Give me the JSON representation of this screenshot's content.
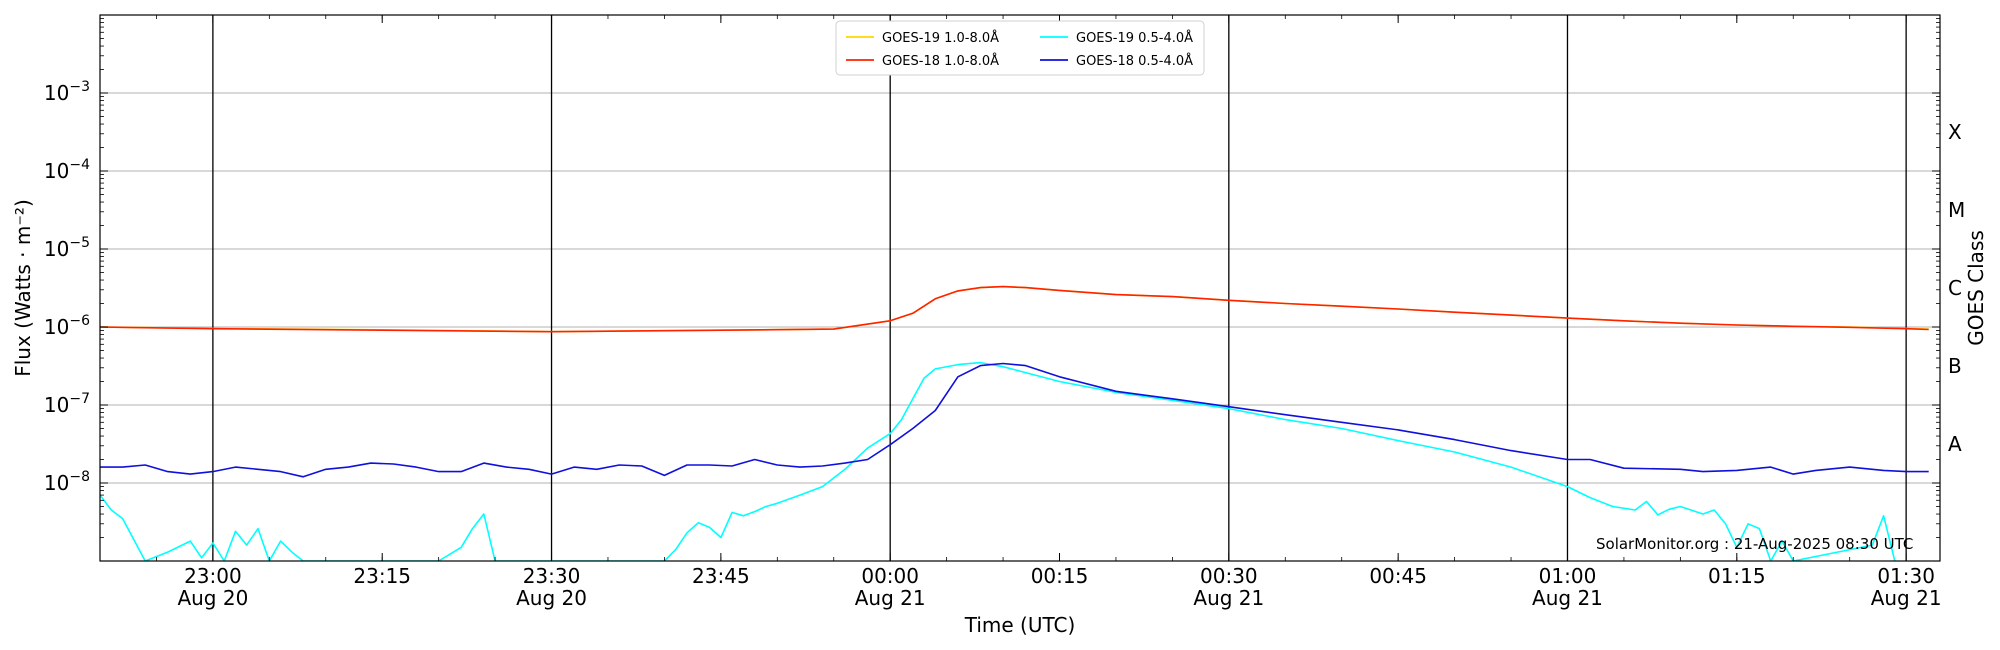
{
  "chart_data": {
    "type": "line",
    "title": "",
    "xlabel": "Time (UTC)",
    "ylabel": "Flux (Watts · m⁻²)",
    "ylabel_right": "GOES Class",
    "yscale": "log",
    "ylim": [
      1e-09,
      0.01
    ],
    "xlim": [
      "2025-08-20 22:50",
      "2025-08-21 01:33"
    ],
    "grid": "horizontal",
    "legend_position": "top-center",
    "credit": "SolarMonitor.org : 21-Aug-2025 08:30 UTC",
    "x_ticks": [
      {
        "t": "2025-08-20 23:00",
        "line1": "23:00",
        "line2": "Aug 20"
      },
      {
        "t": "2025-08-20 23:15",
        "line1": "23:15",
        "line2": ""
      },
      {
        "t": "2025-08-20 23:30",
        "line1": "23:30",
        "line2": "Aug 20"
      },
      {
        "t": "2025-08-20 23:45",
        "line1": "23:45",
        "line2": ""
      },
      {
        "t": "2025-08-21 00:00",
        "line1": "00:00",
        "line2": "Aug 21"
      },
      {
        "t": "2025-08-21 00:15",
        "line1": "00:15",
        "line2": ""
      },
      {
        "t": "2025-08-21 00:30",
        "line1": "00:30",
        "line2": "Aug 21"
      },
      {
        "t": "2025-08-21 00:45",
        "line1": "00:45",
        "line2": ""
      },
      {
        "t": "2025-08-21 01:00",
        "line1": "01:00",
        "line2": "Aug 21"
      },
      {
        "t": "2025-08-21 01:15",
        "line1": "01:15",
        "line2": ""
      },
      {
        "t": "2025-08-21 01:30",
        "line1": "01:30",
        "line2": "Aug 21"
      }
    ],
    "vertical_markers": [
      "2025-08-20 23:00",
      "2025-08-20 23:30",
      "2025-08-21 00:00",
      "2025-08-21 00:30",
      "2025-08-21 01:00",
      "2025-08-21 01:30"
    ],
    "y_ticks": [
      {
        "exp": -3,
        "label": "10",
        "sup": "−3"
      },
      {
        "exp": -4,
        "label": "10",
        "sup": "−4"
      },
      {
        "exp": -5,
        "label": "10",
        "sup": "−5"
      },
      {
        "exp": -6,
        "label": "10",
        "sup": "−6"
      },
      {
        "exp": -7,
        "label": "10",
        "sup": "−7"
      },
      {
        "exp": -8,
        "label": "10",
        "sup": "−8"
      }
    ],
    "goes_classes": [
      {
        "label": "X",
        "flux": 0.0001
      },
      {
        "label": "M",
        "flux": 1e-05
      },
      {
        "label": "C",
        "flux": 1e-06
      },
      {
        "label": "B",
        "flux": 1e-07
      },
      {
        "label": "A",
        "flux": 1e-08
      }
    ],
    "series": [
      {
        "name": "GOES-19 1.0-8.0Å",
        "color": "#ffd700",
        "x": [
          "2025-08-20 22:50",
          "2025-08-20 23:00",
          "2025-08-20 23:15",
          "2025-08-20 23:30",
          "2025-08-20 23:45",
          "2025-08-20 23:55",
          "2025-08-21 00:00",
          "2025-08-21 00:02",
          "2025-08-21 00:04",
          "2025-08-21 00:06",
          "2025-08-21 00:08",
          "2025-08-21 00:10",
          "2025-08-21 00:12",
          "2025-08-21 00:15",
          "2025-08-21 00:20",
          "2025-08-21 00:25",
          "2025-08-21 00:30",
          "2025-08-21 00:35",
          "2025-08-21 00:40",
          "2025-08-21 00:45",
          "2025-08-21 00:50",
          "2025-08-21 00:55",
          "2025-08-21 01:00",
          "2025-08-21 01:05",
          "2025-08-21 01:10",
          "2025-08-21 01:15",
          "2025-08-21 01:20",
          "2025-08-21 01:25",
          "2025-08-21 01:30",
          "2025-08-21 01:32"
        ],
        "y": [
          1e-06,
          9.6e-07,
          9.2e-07,
          8.7e-07,
          9.1e-07,
          9.4e-07,
          1.2e-06,
          1.5e-06,
          2.3e-06,
          2.9e-06,
          3.2e-06,
          3.3e-06,
          3.2e-06,
          2.95e-06,
          2.6e-06,
          2.45e-06,
          2.2e-06,
          2e-06,
          1.85e-06,
          1.7e-06,
          1.55e-06,
          1.42e-06,
          1.3e-06,
          1.2e-06,
          1.12e-06,
          1.06e-06,
          1.02e-06,
          1e-06,
          9.6e-07,
          9.4e-07
        ]
      },
      {
        "name": "GOES-18 1.0-8.0Å",
        "color": "#ff2200",
        "x": [
          "2025-08-20 22:50",
          "2025-08-20 23:00",
          "2025-08-20 23:15",
          "2025-08-20 23:30",
          "2025-08-20 23:45",
          "2025-08-20 23:55",
          "2025-08-21 00:00",
          "2025-08-21 00:02",
          "2025-08-21 00:04",
          "2025-08-21 00:06",
          "2025-08-21 00:08",
          "2025-08-21 00:10",
          "2025-08-21 00:12",
          "2025-08-21 00:15",
          "2025-08-21 00:20",
          "2025-08-21 00:25",
          "2025-08-21 00:30",
          "2025-08-21 00:35",
          "2025-08-21 00:40",
          "2025-08-21 00:45",
          "2025-08-21 00:50",
          "2025-08-21 00:55",
          "2025-08-21 01:00",
          "2025-08-21 01:05",
          "2025-08-21 01:10",
          "2025-08-21 01:15",
          "2025-08-21 01:20",
          "2025-08-21 01:25",
          "2025-08-21 01:30",
          "2025-08-21 01:32"
        ],
        "y": [
          1e-06,
          9.5e-07,
          9.1e-07,
          8.7e-07,
          9.1e-07,
          9.4e-07,
          1.2e-06,
          1.5e-06,
          2.3e-06,
          2.9e-06,
          3.2e-06,
          3.3e-06,
          3.2e-06,
          2.95e-06,
          2.6e-06,
          2.45e-06,
          2.2e-06,
          2e-06,
          1.85e-06,
          1.7e-06,
          1.55e-06,
          1.42e-06,
          1.3e-06,
          1.2e-06,
          1.12e-06,
          1.06e-06,
          1.02e-06,
          9.9e-07,
          9.5e-07,
          9.3e-07
        ]
      },
      {
        "name": "GOES-19 0.5-4.0Å",
        "color": "#00ffff",
        "x": [
          "2025-08-20 22:50",
          "2025-08-20 22:51",
          "2025-08-20 22:52",
          "2025-08-20 22:54",
          "2025-08-20 22:56",
          "2025-08-20 22:58",
          "2025-08-20 22:59",
          "2025-08-20 23:00",
          "2025-08-20 23:01",
          "2025-08-20 23:02",
          "2025-08-20 23:03",
          "2025-08-20 23:04",
          "2025-08-20 23:05",
          "2025-08-20 23:06",
          "2025-08-20 23:07",
          "2025-08-20 23:08",
          "2025-08-20 23:10",
          "2025-08-20 23:20",
          "2025-08-20 23:22",
          "2025-08-20 23:23",
          "2025-08-20 23:24",
          "2025-08-20 23:25",
          "2025-08-20 23:40",
          "2025-08-20 23:41",
          "2025-08-20 23:42",
          "2025-08-20 23:43",
          "2025-08-20 23:44",
          "2025-08-20 23:45",
          "2025-08-20 23:46",
          "2025-08-20 23:47",
          "2025-08-20 23:48",
          "2025-08-20 23:49",
          "2025-08-20 23:50",
          "2025-08-20 23:52",
          "2025-08-20 23:54",
          "2025-08-20 23:56",
          "2025-08-20 23:58",
          "2025-08-21 00:00",
          "2025-08-21 00:01",
          "2025-08-21 00:02",
          "2025-08-21 00:03",
          "2025-08-21 00:04",
          "2025-08-21 00:06",
          "2025-08-21 00:08",
          "2025-08-21 00:10",
          "2025-08-21 00:12",
          "2025-08-21 00:15",
          "2025-08-21 00:20",
          "2025-08-21 00:25",
          "2025-08-21 00:30",
          "2025-08-21 00:35",
          "2025-08-21 00:40",
          "2025-08-21 00:45",
          "2025-08-21 00:50",
          "2025-08-21 00:55",
          "2025-08-21 01:00",
          "2025-08-21 01:02",
          "2025-08-21 01:04",
          "2025-08-21 01:06",
          "2025-08-21 01:07",
          "2025-08-21 01:08",
          "2025-08-21 01:09",
          "2025-08-21 01:10",
          "2025-08-21 01:12",
          "2025-08-21 01:13",
          "2025-08-21 01:14",
          "2025-08-21 01:15",
          "2025-08-21 01:16",
          "2025-08-21 01:17",
          "2025-08-21 01:18",
          "2025-08-21 01:19",
          "2025-08-21 01:20",
          "2025-08-21 01:27",
          "2025-08-21 01:28",
          "2025-08-21 01:29"
        ],
        "y": [
          7e-09,
          4.5e-09,
          3.5e-09,
          1e-09,
          1.3e-09,
          1.8e-09,
          1.1e-09,
          1.7e-09,
          1e-09,
          2.4e-09,
          1.6e-09,
          2.6e-09,
          1e-09,
          1.8e-09,
          1.3e-09,
          1e-09,
          1e-09,
          1e-09,
          1.5e-09,
          2.6e-09,
          4e-09,
          1e-09,
          1e-09,
          1.4e-09,
          2.3e-09,
          3.1e-09,
          2.7e-09,
          2e-09,
          4.2e-09,
          3.8e-09,
          4.3e-09,
          5e-09,
          5.5e-09,
          7e-09,
          9e-09,
          1.5e-08,
          2.8e-08,
          4.3e-08,
          6.5e-08,
          1.2e-07,
          2.2e-07,
          2.9e-07,
          3.3e-07,
          3.5e-07,
          3.1e-07,
          2.6e-07,
          2e-07,
          1.45e-07,
          1.15e-07,
          9e-08,
          6.5e-08,
          5e-08,
          3.5e-08,
          2.5e-08,
          1.6e-08,
          9e-09,
          6.5e-09,
          5e-09,
          4.5e-09,
          5.8e-09,
          3.9e-09,
          4.6e-09,
          5e-09,
          4e-09,
          4.5e-09,
          3e-09,
          1.5e-09,
          3e-09,
          2.6e-09,
          1e-09,
          1.8e-09,
          1e-09,
          1.6e-09,
          3.8e-09,
          1e-09
        ]
      },
      {
        "name": "GOES-18 0.5-4.0Å",
        "color": "#1010dd",
        "x": [
          "2025-08-20 22:50",
          "2025-08-20 22:52",
          "2025-08-20 22:54",
          "2025-08-20 22:56",
          "2025-08-20 22:58",
          "2025-08-20 23:00",
          "2025-08-20 23:02",
          "2025-08-20 23:04",
          "2025-08-20 23:06",
          "2025-08-20 23:08",
          "2025-08-20 23:10",
          "2025-08-20 23:12",
          "2025-08-20 23:14",
          "2025-08-20 23:16",
          "2025-08-20 23:18",
          "2025-08-20 23:20",
          "2025-08-20 23:22",
          "2025-08-20 23:24",
          "2025-08-20 23:26",
          "2025-08-20 23:28",
          "2025-08-20 23:30",
          "2025-08-20 23:32",
          "2025-08-20 23:34",
          "2025-08-20 23:36",
          "2025-08-20 23:38",
          "2025-08-20 23:40",
          "2025-08-20 23:42",
          "2025-08-20 23:44",
          "2025-08-20 23:46",
          "2025-08-20 23:48",
          "2025-08-20 23:50",
          "2025-08-20 23:52",
          "2025-08-20 23:54",
          "2025-08-20 23:56",
          "2025-08-20 23:58",
          "2025-08-21 00:00",
          "2025-08-21 00:02",
          "2025-08-21 00:04",
          "2025-08-21 00:06",
          "2025-08-21 00:08",
          "2025-08-21 00:10",
          "2025-08-21 00:12",
          "2025-08-21 00:15",
          "2025-08-21 00:20",
          "2025-08-21 00:25",
          "2025-08-21 00:30",
          "2025-08-21 00:35",
          "2025-08-21 00:40",
          "2025-08-21 00:45",
          "2025-08-21 00:50",
          "2025-08-21 00:55",
          "2025-08-21 01:00",
          "2025-08-21 01:02",
          "2025-08-21 01:05",
          "2025-08-21 01:10",
          "2025-08-21 01:12",
          "2025-08-21 01:15",
          "2025-08-21 01:18",
          "2025-08-21 01:20",
          "2025-08-21 01:22",
          "2025-08-21 01:25",
          "2025-08-21 01:28",
          "2025-08-21 01:30",
          "2025-08-21 01:32"
        ],
        "y": [
          1.6e-08,
          1.6e-08,
          1.7e-08,
          1.4e-08,
          1.3e-08,
          1.4e-08,
          1.6e-08,
          1.5e-08,
          1.4e-08,
          1.2e-08,
          1.5e-08,
          1.6e-08,
          1.8e-08,
          1.75e-08,
          1.6e-08,
          1.4e-08,
          1.4e-08,
          1.8e-08,
          1.6e-08,
          1.5e-08,
          1.3e-08,
          1.6e-08,
          1.5e-08,
          1.7e-08,
          1.65e-08,
          1.25e-08,
          1.7e-08,
          1.7e-08,
          1.65e-08,
          2e-08,
          1.7e-08,
          1.6e-08,
          1.65e-08,
          1.8e-08,
          2e-08,
          3.1e-08,
          5e-08,
          8.5e-08,
          2.3e-07,
          3.2e-07,
          3.4e-07,
          3.2e-07,
          2.3e-07,
          1.5e-07,
          1.2e-07,
          9.5e-08,
          7.5e-08,
          6e-08,
          4.8e-08,
          3.6e-08,
          2.6e-08,
          2e-08,
          2e-08,
          1.55e-08,
          1.5e-08,
          1.4e-08,
          1.45e-08,
          1.6e-08,
          1.3e-08,
          1.45e-08,
          1.6e-08,
          1.45e-08,
          1.4e-08,
          1.4e-08
        ]
      }
    ]
  }
}
